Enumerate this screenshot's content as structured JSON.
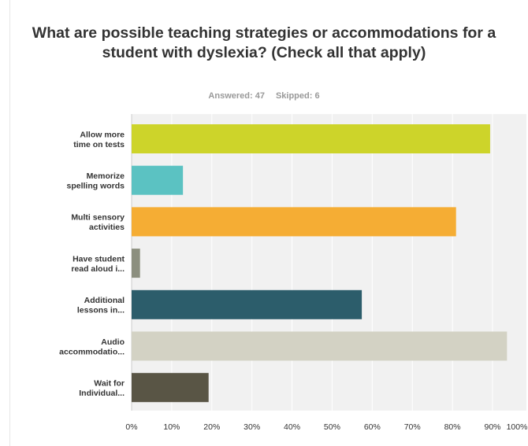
{
  "survey": {
    "answered_label": "Answered: 47",
    "skipped_label": "Skipped: 6"
  },
  "chart_data": {
    "type": "bar",
    "orientation": "horizontal",
    "title": "What are possible teaching strategies or accommodations for a student with dyslexia? (Check all that apply)",
    "categories": [
      [
        "Allow more",
        "time on tests"
      ],
      [
        "Memorize",
        "spelling words"
      ],
      [
        "Multi sensory",
        "activities"
      ],
      [
        "Have student",
        "read aloud i..."
      ],
      [
        "Additional",
        "lessons in..."
      ],
      [
        "Audio",
        "accommodatio..."
      ],
      [
        "Wait for",
        "Individual..."
      ]
    ],
    "values": [
      89.4,
      12.8,
      80.9,
      2.1,
      57.4,
      93.6,
      19.2
    ],
    "colors": [
      "#cdd42a",
      "#5bc2c2",
      "#f5ad34",
      "#8c8f7f",
      "#2c5d6b",
      "#d3d2c4",
      "#595545"
    ],
    "xlim": [
      0,
      100
    ],
    "xticks": [
      "0%",
      "10%",
      "20%",
      "30%",
      "40%",
      "50%",
      "60%",
      "70%",
      "80%",
      "90%",
      "100%"
    ],
    "grid": true,
    "legend": "none"
  }
}
